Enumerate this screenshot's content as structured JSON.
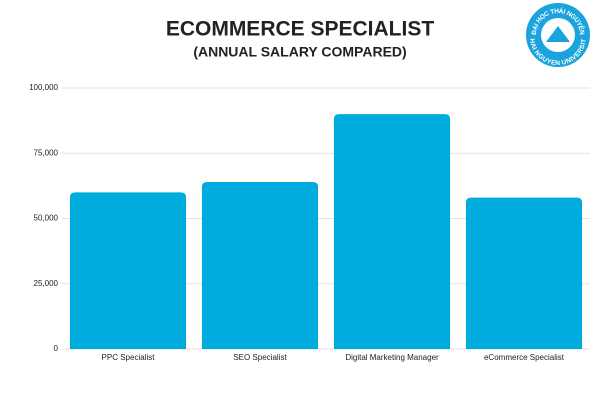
{
  "chart_data": {
    "type": "bar",
    "title": "ECOMMERCE SPECIALIST",
    "subtitle": "(ANNUAL SALARY COMPARED)",
    "categories": [
      "PPC Specialist",
      "SEO Specialist",
      "Digital Marketing Manager",
      "eCommerce Specialist"
    ],
    "values": [
      60000,
      64000,
      90000,
      58000
    ],
    "color": "#00abdd",
    "ylim": [
      0,
      100000
    ],
    "yticks": [
      0,
      {
        "value": 25000,
        "label": "25,000"
      },
      {
        "value": 50000,
        "label": "50,000"
      },
      {
        "value": 75000,
        "label": "75,000"
      },
      {
        "value": 100000,
        "label": "100,000"
      }
    ],
    "grid": true
  },
  "logo": {
    "top": "ĐẠI HỌC THÁI NGUYÊN",
    "bottom": "THAI NGUYEN UNIVERSITY"
  }
}
